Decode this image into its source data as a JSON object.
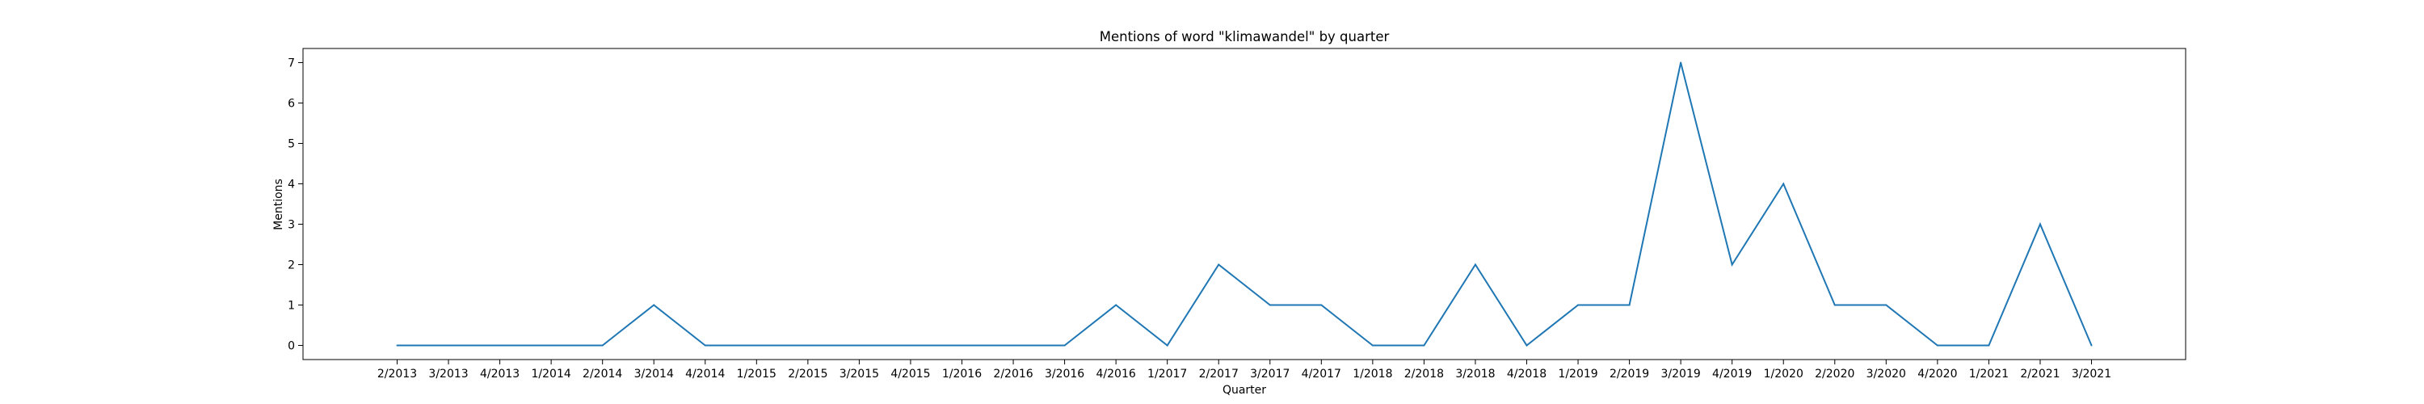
{
  "chart_data": {
    "type": "line",
    "title": "Mentions of word \"klimawandel\" by quarter",
    "xlabel": "Quarter",
    "ylabel": "Mentions",
    "categories": [
      "2/2013",
      "3/2013",
      "4/2013",
      "1/2014",
      "2/2014",
      "3/2014",
      "4/2014",
      "1/2015",
      "2/2015",
      "3/2015",
      "4/2015",
      "1/2016",
      "2/2016",
      "3/2016",
      "4/2016",
      "1/2017",
      "2/2017",
      "3/2017",
      "4/2017",
      "1/2018",
      "2/2018",
      "3/2018",
      "4/2018",
      "1/2019",
      "2/2019",
      "3/2019",
      "4/2019",
      "1/2020",
      "2/2020",
      "3/2020",
      "4/2020",
      "1/2021",
      "2/2021",
      "3/2021"
    ],
    "values": [
      0,
      0,
      0,
      0,
      0,
      1,
      0,
      0,
      0,
      0,
      0,
      0,
      0,
      0,
      1,
      0,
      2,
      1,
      1,
      0,
      0,
      2,
      0,
      1,
      1,
      7,
      2,
      4,
      1,
      1,
      0,
      0,
      3,
      0
    ],
    "yticks": [
      0,
      1,
      2,
      3,
      4,
      5,
      6,
      7
    ],
    "ylim": [
      -0.35,
      7.35
    ],
    "grid": false,
    "line_color": "#1f77b4"
  }
}
